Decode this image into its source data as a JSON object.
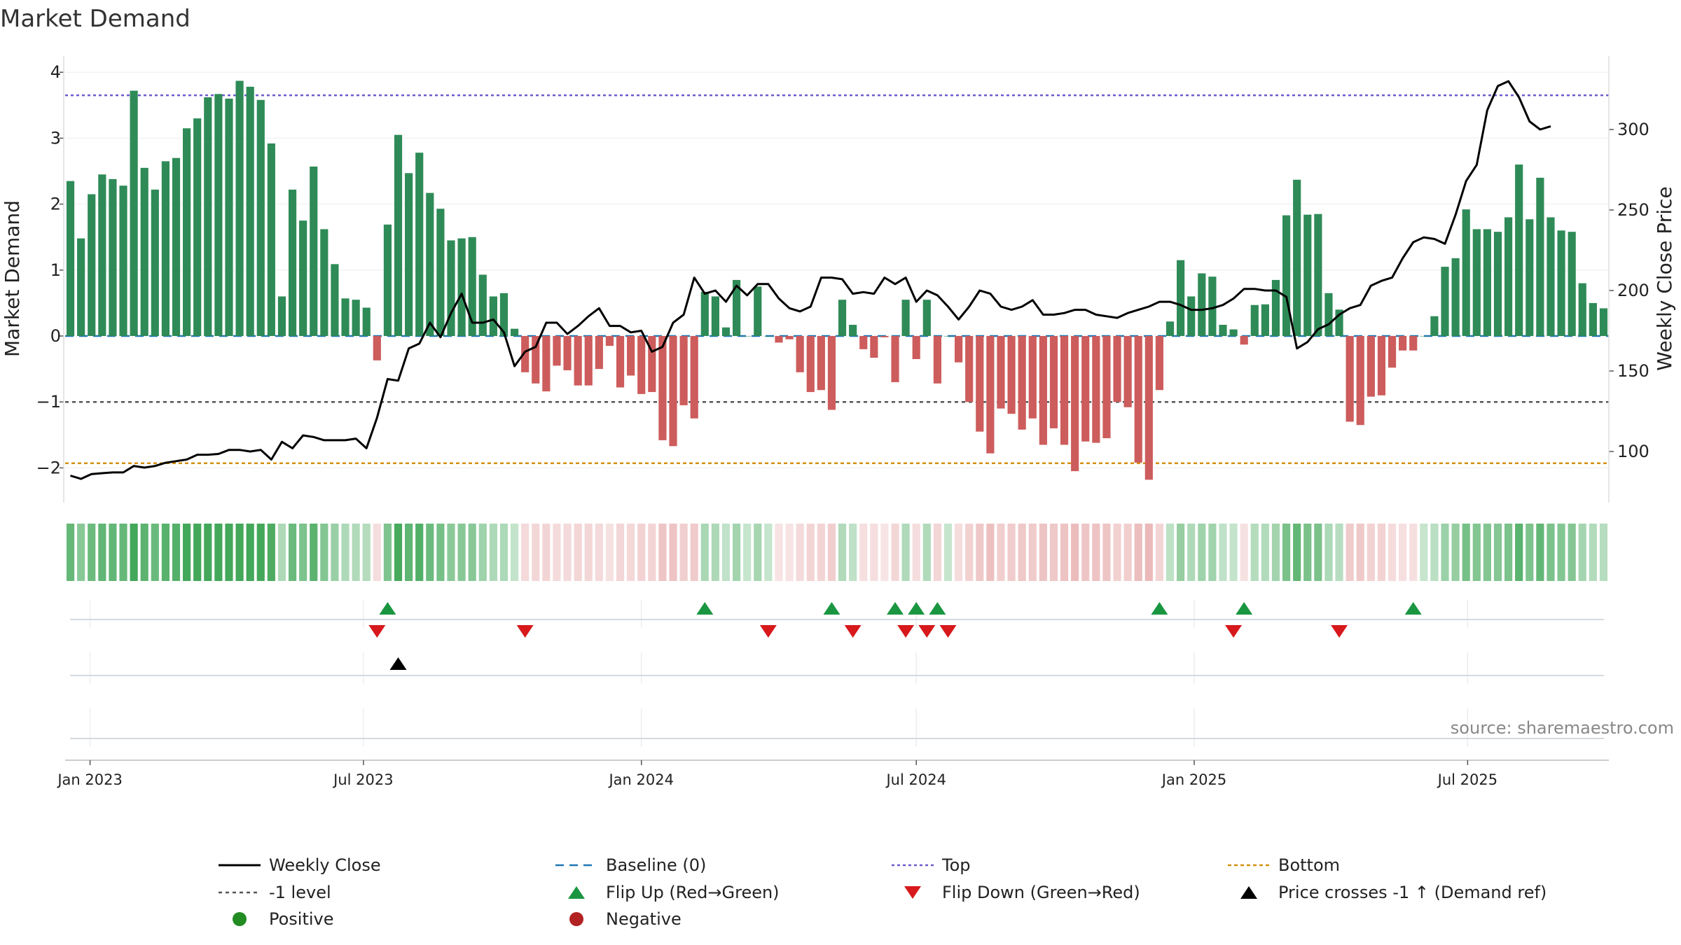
{
  "chart_data": {
    "type": "bar",
    "title": "Market Demand",
    "ylabel": "Market Demand",
    "y2label": "Weekly Close Price",
    "ylim": [
      -2.5,
      4.2
    ],
    "y2lim": [
      80,
      340
    ],
    "yticks": [
      "4",
      "3",
      "2",
      "1",
      "0",
      "−1",
      "−2"
    ],
    "y2ticks": [
      "300",
      "250",
      "200",
      "150",
      "100"
    ],
    "xticks": [
      "Jan 2023",
      "Jul 2023",
      "Jan 2024",
      "Jul 2024",
      "Jan 2025",
      "Jul 2025"
    ],
    "start_date": "2022-12-19",
    "source": "source: sharemaestro.com",
    "reference_lines": {
      "top": 3.65,
      "minus_one": -1,
      "bottom": -1.93,
      "baseline": 0
    },
    "series": [
      {
        "name": "Market Demand",
        "values": [
          2.35,
          1.48,
          2.15,
          2.45,
          2.38,
          2.28,
          3.72,
          2.55,
          2.22,
          2.65,
          2.7,
          3.15,
          3.3,
          3.62,
          3.67,
          3.6,
          3.87,
          3.78,
          3.58,
          2.92,
          0.6,
          2.22,
          1.75,
          2.57,
          1.62,
          1.09,
          0.57,
          0.55,
          0.43,
          -0.37,
          1.69,
          3.05,
          2.47,
          2.78,
          2.17,
          1.93,
          1.45,
          1.48,
          1.5,
          0.93,
          0.6,
          0.65,
          0.11,
          -0.55,
          -0.72,
          -0.84,
          -0.45,
          -0.52,
          -0.75,
          -0.75,
          -0.5,
          -0.15,
          -0.78,
          -0.6,
          -0.88,
          -0.85,
          -1.58,
          -1.67,
          -1.05,
          -1.25,
          0.67,
          0.6,
          0.13,
          0.85,
          0.0,
          0.75,
          0.0,
          -0.1,
          -0.05,
          -0.55,
          -0.85,
          -0.82,
          -1.12,
          0.55,
          0.17,
          -0.2,
          -0.33,
          -0.02,
          -0.7,
          0.55,
          -0.35,
          0.55,
          -0.72,
          0.0,
          -0.4,
          -1.0,
          -1.45,
          -1.78,
          -1.1,
          -1.18,
          -1.42,
          -1.25,
          -1.65,
          -1.4,
          -1.65,
          -2.05,
          -1.6,
          -1.62,
          -1.55,
          -1.0,
          -1.08,
          -1.92,
          -2.18,
          -0.82,
          0.22,
          1.15,
          0.6,
          0.95,
          0.9,
          0.17,
          0.1,
          -0.13,
          0.47,
          0.48,
          0.85,
          1.83,
          2.37,
          1.84,
          1.85,
          0.65,
          0.4,
          -1.3,
          -1.35,
          -0.92,
          -0.9,
          -0.48,
          -0.22,
          -0.22,
          0.0,
          0.3,
          1.05,
          1.18,
          1.92,
          1.62,
          1.62,
          1.58,
          1.8,
          2.6,
          1.77,
          2.4,
          1.8,
          1.6,
          1.58,
          0.8,
          0.5,
          0.42
        ]
      },
      {
        "name": "Weekly Close",
        "values": [
          85,
          83,
          86,
          86.5,
          87,
          87,
          91,
          90,
          91,
          93,
          94,
          95,
          98,
          98,
          98.5,
          101,
          101,
          100,
          101,
          95,
          106,
          102,
          110,
          109,
          107,
          107,
          107,
          108,
          102,
          121,
          145,
          144,
          164,
          167,
          180,
          171,
          186,
          198,
          180,
          180,
          182,
          174,
          153,
          162,
          165,
          180,
          180,
          173,
          178,
          184,
          189,
          178,
          178,
          174,
          175,
          162,
          165,
          180,
          185,
          208,
          198,
          200,
          193,
          203,
          197,
          204,
          204,
          195,
          189,
          187,
          190,
          208,
          208,
          207,
          198,
          199,
          198,
          208,
          204,
          208,
          193,
          200,
          197,
          190,
          182,
          190,
          200,
          198,
          190,
          188,
          190,
          194,
          185,
          185,
          186,
          188,
          188,
          185,
          184,
          183,
          186,
          188,
          190,
          193,
          193,
          191,
          188,
          188,
          189,
          191,
          195,
          201,
          201,
          200,
          200,
          196,
          164,
          168,
          176,
          179,
          185,
          189,
          191,
          203,
          206,
          208,
          220,
          230,
          233,
          232,
          229,
          247,
          268,
          278,
          312,
          327,
          330,
          320,
          305,
          300,
          302
        ]
      }
    ],
    "flip_up_indices": [
      30,
      60,
      72,
      78,
      80,
      82,
      103,
      111,
      127
    ],
    "flip_down_indices": [
      29,
      43,
      66,
      74,
      79,
      81,
      83,
      110,
      120
    ],
    "price_cross_indices": [
      31
    ],
    "legend": {
      "weekly_close": "Weekly Close",
      "baseline": "Baseline (0)",
      "top": "Top",
      "bottom": "Bottom",
      "minus_one": "-1 level",
      "flip_up": "Flip Up (Red→Green)",
      "flip_down": "Flip Down (Green→Red)",
      "price_cross": "Price crosses -1 ↑ (Demand ref)",
      "positive": "Positive",
      "negative": "Negative"
    },
    "colors": {
      "positive": "#2e8b57",
      "negative": "#cd5c5c",
      "price": "#000000",
      "top": "#6a5acd",
      "minus_one": "#555555",
      "bottom": "#d4900f",
      "baseline": "#1f77b4",
      "flip_up": "#1a9641",
      "flip_down": "#d7191c",
      "cross": "#000000",
      "positive_marker": "#228b22",
      "negative_marker": "#b22222"
    }
  }
}
